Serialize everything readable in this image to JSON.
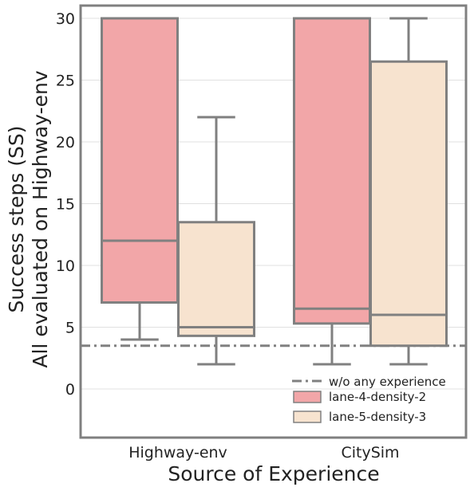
{
  "chart_data": {
    "type": "box",
    "categories": [
      "Highway-env",
      "CitySim"
    ],
    "xlabel": "Source of Experience",
    "ylabel_lines": [
      "Success steps (SS)",
      "All evaluated on Highway-env"
    ],
    "ylim": [
      -4,
      31
    ],
    "yticks": [
      0,
      5,
      10,
      15,
      20,
      25,
      30
    ],
    "grid": true,
    "legend_position": "bottom-right",
    "baseline": {
      "name": "w/o any experience",
      "value": 3.5,
      "color": "#808080",
      "style": "dash-dot"
    },
    "series": [
      {
        "name": "lane-4-density-2",
        "color": "#f2a6a8",
        "boxes": [
          {
            "whislo": 4,
            "q1": 7,
            "med": 12,
            "q3": 30,
            "whishi": 30
          },
          {
            "whislo": 2,
            "q1": 5.3,
            "med": 6.5,
            "q3": 30,
            "whishi": 30
          }
        ]
      },
      {
        "name": "lane-5-density-3",
        "color": "#f7e3cf",
        "boxes": [
          {
            "whislo": 2,
            "q1": 4.3,
            "med": 5,
            "q3": 13.5,
            "whishi": 22
          },
          {
            "whislo": 2,
            "q1": 3.5,
            "med": 6,
            "q3": 26.5,
            "whishi": 30
          }
        ]
      }
    ]
  }
}
